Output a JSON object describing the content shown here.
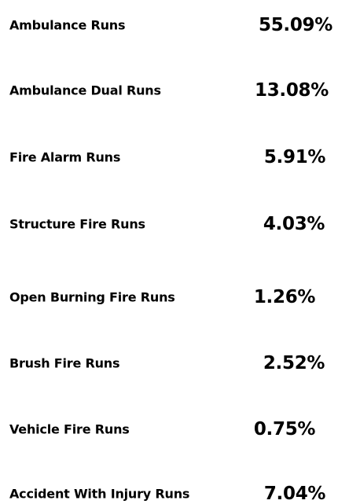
{
  "items": [
    {
      "label": "Ambulance Runs",
      "value": "55.09%"
    },
    {
      "label": "Ambulance Dual Runs",
      "value": "13.08%"
    },
    {
      "label": "Fire Alarm Runs",
      "value": "5.91%"
    },
    {
      "label": "Structure Fire Runs",
      "value": "4.03%"
    },
    {
      "label": "Open Burning Fire Runs",
      "value": "1.26%"
    },
    {
      "label": "Brush Fire Runs",
      "value": "2.52%"
    },
    {
      "label": "Vehicle Fire Runs",
      "value": "0.75%"
    },
    {
      "label": "Accident With Injury Runs",
      "value": "7.04%"
    }
  ]
}
